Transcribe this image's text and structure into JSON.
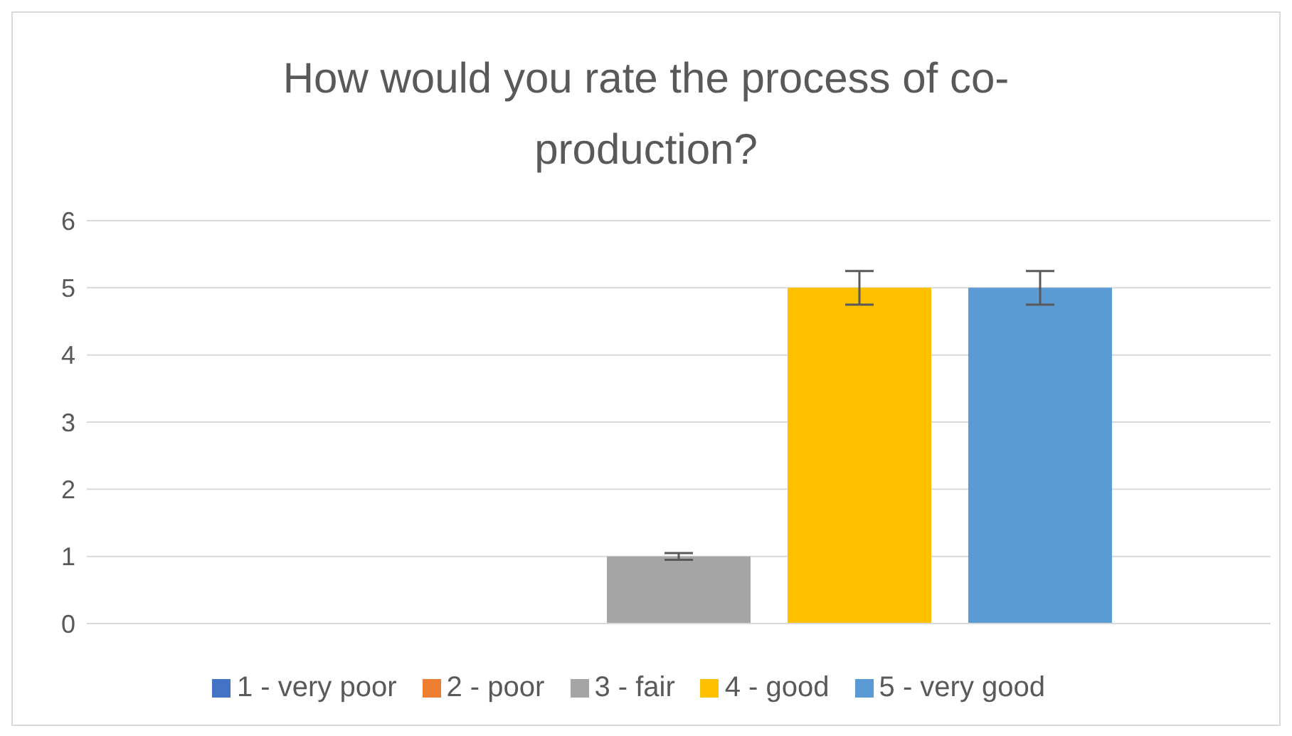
{
  "chart_data": {
    "type": "bar",
    "title": "How would you rate the process of co-production?",
    "categories": [
      null
    ],
    "series": [
      {
        "name": "1 - very poor",
        "color": "#4472c4",
        "values": [
          0
        ]
      },
      {
        "name": "2 - poor",
        "color": "#ed7d31",
        "values": [
          0
        ]
      },
      {
        "name": "3 - fair",
        "color": "#a5a5a5",
        "values": [
          1
        ],
        "errors": [
          0.05
        ]
      },
      {
        "name": "4 - good",
        "color": "#ffc000",
        "values": [
          5
        ],
        "errors": [
          0.25
        ]
      },
      {
        "name": "5 - very good",
        "color": "#5b9bd5",
        "values": [
          5
        ],
        "errors": [
          0.25
        ]
      }
    ],
    "ylim": [
      0,
      6
    ],
    "yticks": [
      0,
      1,
      2,
      3,
      4,
      5,
      6
    ],
    "grid": "y",
    "legend": "bottom"
  }
}
